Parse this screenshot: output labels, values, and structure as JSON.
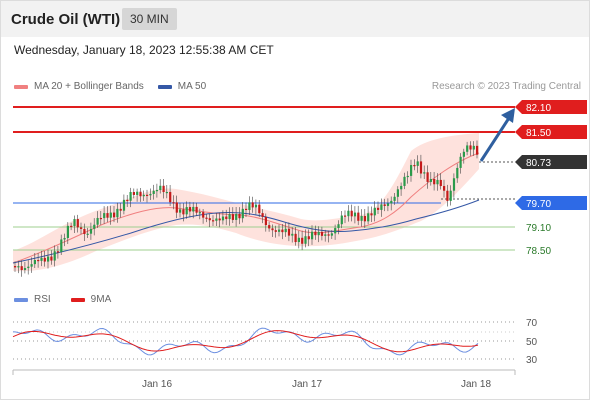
{
  "header": {
    "title": "Crude Oil (WTI)",
    "timeframe": "30 MIN"
  },
  "datetime": "Wednesday, January 18, 2023 12:55:38 AM CET",
  "legend": {
    "ma20": "MA 20 + Bollinger Bands",
    "ma50": "MA 50",
    "copyright": "Research © 2023 Trading Central",
    "rsi": "RSI",
    "ma9": "9MA"
  },
  "colors": {
    "resistance": "#e01e1e",
    "support_blue": "#2e6ae6",
    "support_green": "#9fcf8f",
    "current": "#333333",
    "candle_up": "#2a9a4a",
    "candle_down": "#c41a1a",
    "ma20": "#f08080",
    "ma50": "#3558a6",
    "bollinger": "#fdd8d2",
    "arrow": "#2f5f9f",
    "rsi": "#6c8fe0",
    "rsi_ma": "#e01e1e"
  },
  "levels": [
    {
      "value": "82.10",
      "type": "resistance"
    },
    {
      "value": "81.50",
      "type": "resistance"
    },
    {
      "value": "80.73",
      "type": "current"
    },
    {
      "value": "79.70",
      "type": "support_blue"
    },
    {
      "value": "79.10",
      "type": "support_green"
    },
    {
      "value": "78.50",
      "type": "support_green"
    }
  ],
  "rsi_axis": [
    "70",
    "50",
    "30"
  ],
  "x_axis": [
    "Jan 16",
    "Jan 17",
    "Jan 18"
  ]
}
